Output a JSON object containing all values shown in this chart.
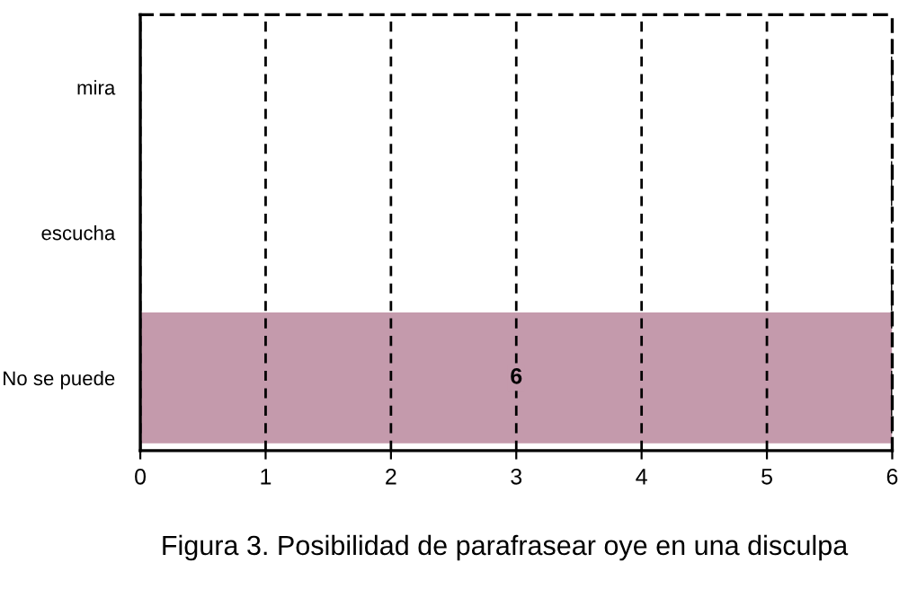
{
  "chart_data": {
    "type": "bar",
    "orientation": "horizontal",
    "categories": [
      "mira",
      "escucha",
      "No se puede"
    ],
    "values": [
      0,
      0,
      6
    ],
    "color": "#c49aac",
    "value_labels": [
      null,
      null,
      "6"
    ],
    "xlim": [
      0,
      6
    ],
    "xticks": [
      0,
      1,
      2,
      3,
      4,
      5,
      6
    ],
    "grid": "x",
    "annotations": [
      "Figura 3. Posibilidad de parafrasear oye en una disculpa"
    ]
  }
}
